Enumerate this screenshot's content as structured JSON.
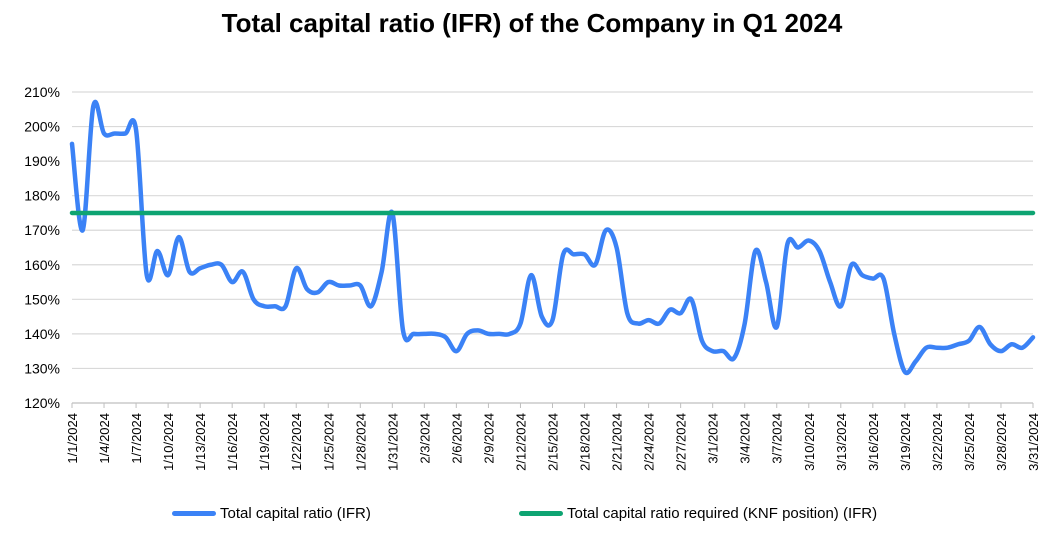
{
  "chart_data": {
    "type": "line",
    "title": "Total capital ratio (IFR) of the Company in Q1 2024",
    "xlabel": "",
    "ylabel": "",
    "ylim": [
      120,
      210
    ],
    "y_tick_step": 10,
    "y_format": "percent",
    "grid": true,
    "legend_position": "bottom",
    "x": [
      "1/1/2024",
      "1/2/2024",
      "1/3/2024",
      "1/4/2024",
      "1/5/2024",
      "1/6/2024",
      "1/7/2024",
      "1/8/2024",
      "1/9/2024",
      "1/10/2024",
      "1/11/2024",
      "1/12/2024",
      "1/13/2024",
      "1/14/2024",
      "1/15/2024",
      "1/16/2024",
      "1/17/2024",
      "1/18/2024",
      "1/19/2024",
      "1/20/2024",
      "1/21/2024",
      "1/22/2024",
      "1/23/2024",
      "1/24/2024",
      "1/25/2024",
      "1/26/2024",
      "1/27/2024",
      "1/28/2024",
      "1/29/2024",
      "1/30/2024",
      "1/31/2024",
      "2/1/2024",
      "2/2/2024",
      "2/3/2024",
      "2/4/2024",
      "2/5/2024",
      "2/6/2024",
      "2/7/2024",
      "2/8/2024",
      "2/9/2024",
      "2/10/2024",
      "2/11/2024",
      "2/12/2024",
      "2/13/2024",
      "2/14/2024",
      "2/15/2024",
      "2/16/2024",
      "2/17/2024",
      "2/18/2024",
      "2/19/2024",
      "2/20/2024",
      "2/21/2024",
      "2/22/2024",
      "2/23/2024",
      "2/24/2024",
      "2/25/2024",
      "2/26/2024",
      "2/27/2024",
      "2/28/2024",
      "2/29/2024",
      "3/1/2024",
      "3/2/2024",
      "3/3/2024",
      "3/4/2024",
      "3/5/2024",
      "3/6/2024",
      "3/7/2024",
      "3/8/2024",
      "3/9/2024",
      "3/10/2024",
      "3/11/2024",
      "3/12/2024",
      "3/13/2024",
      "3/14/2024",
      "3/15/2024",
      "3/16/2024",
      "3/17/2024",
      "3/18/2024",
      "3/19/2024",
      "3/20/2024",
      "3/21/2024",
      "3/22/2024",
      "3/23/2024",
      "3/24/2024",
      "3/25/2024",
      "3/26/2024",
      "3/27/2024",
      "3/28/2024",
      "3/29/2024",
      "3/30/2024",
      "3/31/2024"
    ],
    "x_tick_labels": [
      "1/1/2024",
      "1/4/2024",
      "1/7/2024",
      "1/10/2024",
      "1/13/2024",
      "1/16/2024",
      "1/19/2024",
      "1/22/2024",
      "1/25/2024",
      "1/28/2024",
      "1/31/2024",
      "2/3/2024",
      "2/6/2024",
      "2/9/2024",
      "2/12/2024",
      "2/15/2024",
      "2/18/2024",
      "2/21/2024",
      "2/24/2024",
      "2/27/2024",
      "3/1/2024",
      "3/4/2024",
      "3/7/2024",
      "3/10/2024",
      "3/13/2024",
      "3/16/2024",
      "3/19/2024",
      "3/22/2024",
      "3/25/2024",
      "3/28/2024",
      "3/31/2024"
    ],
    "series": [
      {
        "name": "Total capital ratio (IFR)",
        "color": "#3B82F6",
        "values": [
          195,
          170,
          206,
          198,
          198,
          198,
          199,
          157,
          164,
          157,
          168,
          158,
          159,
          160,
          160,
          155,
          158,
          150,
          148,
          148,
          148,
          159,
          153,
          152,
          155,
          154,
          154,
          154,
          148,
          158,
          175,
          141,
          140,
          140,
          140,
          139,
          135,
          140,
          141,
          140,
          140,
          140,
          143,
          157,
          145,
          144,
          163,
          163,
          163,
          160,
          170,
          165,
          146,
          143,
          144,
          143,
          147,
          146,
          150,
          138,
          135,
          135,
          133,
          143,
          164,
          155,
          142,
          166,
          165,
          167,
          164,
          155,
          148,
          160,
          157,
          156,
          156,
          140,
          129,
          132,
          136,
          136,
          136,
          137,
          138,
          142,
          137,
          135,
          137,
          136,
          139
        ]
      },
      {
        "name": "Total capital ratio required (KNF position) (IFR)",
        "color": "#0EA472",
        "values": [
          175,
          175,
          175,
          175,
          175,
          175,
          175,
          175,
          175,
          175,
          175,
          175,
          175,
          175,
          175,
          175,
          175,
          175,
          175,
          175,
          175,
          175,
          175,
          175,
          175,
          175,
          175,
          175,
          175,
          175,
          175,
          175,
          175,
          175,
          175,
          175,
          175,
          175,
          175,
          175,
          175,
          175,
          175,
          175,
          175,
          175,
          175,
          175,
          175,
          175,
          175,
          175,
          175,
          175,
          175,
          175,
          175,
          175,
          175,
          175,
          175,
          175,
          175,
          175,
          175,
          175,
          175,
          175,
          175,
          175,
          175,
          175,
          175,
          175,
          175,
          175,
          175,
          175,
          175,
          175,
          175,
          175,
          175,
          175,
          175,
          175,
          175,
          175,
          175,
          175,
          175
        ]
      }
    ]
  }
}
